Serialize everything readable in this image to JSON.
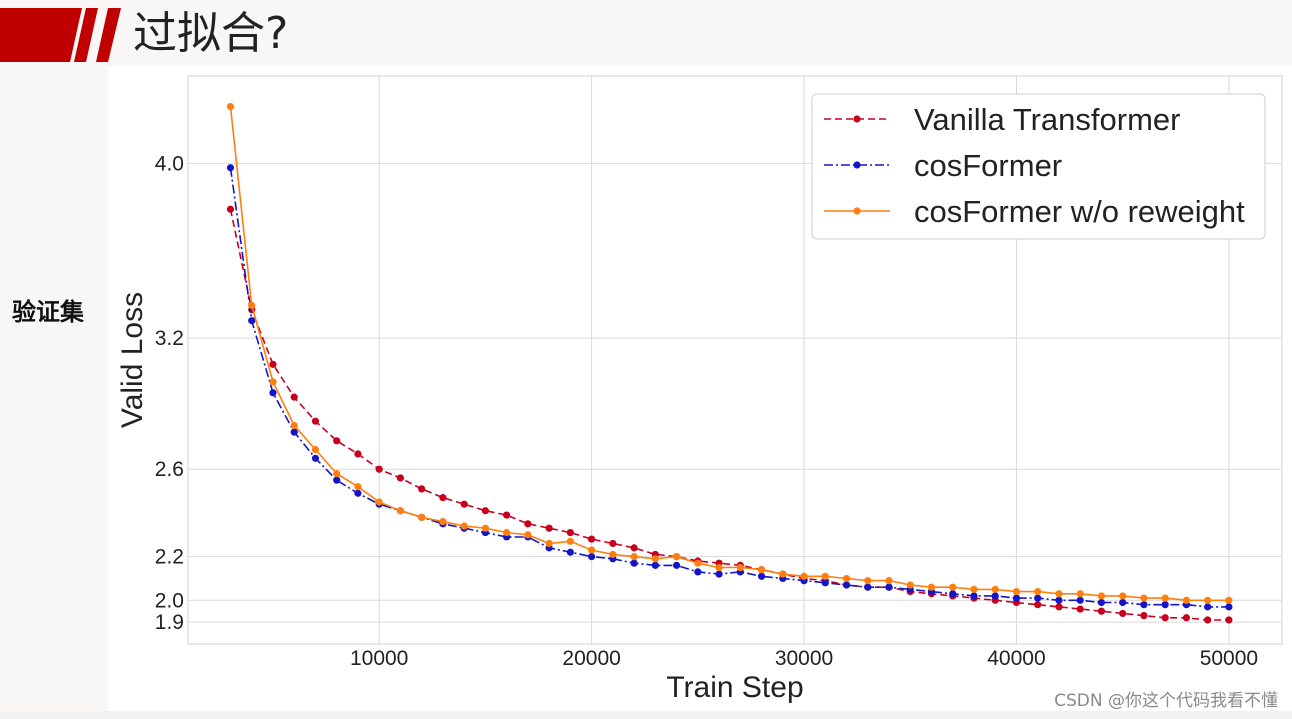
{
  "slide": {
    "title": "过拟合?",
    "side_label": "验证集",
    "watermark": "CSDN @你这个代码我看不懂",
    "accent_color": "#c00000"
  },
  "chart_data": {
    "type": "line",
    "title": "",
    "xlabel": "Train Step",
    "ylabel": "Valid Loss",
    "xlim": [
      1000,
      52500
    ],
    "ylim": [
      1.8,
      4.4
    ],
    "x_ticks": [
      10000,
      20000,
      30000,
      40000,
      50000
    ],
    "x_tick_labels": [
      "10000",
      "20000",
      "30000",
      "40000",
      "50000"
    ],
    "y_ticks": [
      1.9,
      2.0,
      2.2,
      2.6,
      3.2,
      4.0
    ],
    "y_tick_labels": [
      "1.9",
      "2.0",
      "2.2",
      "2.6",
      "3.2",
      "4.0"
    ],
    "grid": true,
    "legend_position": "top-right",
    "x": [
      3000,
      4000,
      5000,
      6000,
      7000,
      8000,
      9000,
      10000,
      11000,
      12000,
      13000,
      14000,
      15000,
      16000,
      17000,
      18000,
      19000,
      20000,
      21000,
      22000,
      23000,
      24000,
      25000,
      26000,
      27000,
      28000,
      29000,
      30000,
      31000,
      32000,
      33000,
      34000,
      35000,
      36000,
      37000,
      38000,
      39000,
      40000,
      41000,
      42000,
      43000,
      44000,
      45000,
      46000,
      47000,
      48000,
      49000,
      50000
    ],
    "series": [
      {
        "name": "Vanilla Transformer",
        "color": "#c8001e",
        "line_style": "dashed",
        "values": [
          3.79,
          3.33,
          3.08,
          2.93,
          2.82,
          2.73,
          2.67,
          2.6,
          2.56,
          2.51,
          2.47,
          2.44,
          2.41,
          2.39,
          2.35,
          2.33,
          2.31,
          2.28,
          2.26,
          2.24,
          2.21,
          2.2,
          2.18,
          2.17,
          2.16,
          2.14,
          2.12,
          2.1,
          2.09,
          2.07,
          2.06,
          2.06,
          2.04,
          2.03,
          2.02,
          2.01,
          2.0,
          1.99,
          1.98,
          1.97,
          1.96,
          1.95,
          1.94,
          1.93,
          1.92,
          1.92,
          1.91,
          1.91
        ]
      },
      {
        "name": "cosFormer",
        "color": "#1414c8",
        "line_style": "dashdot",
        "values": [
          3.98,
          3.28,
          2.95,
          2.77,
          2.65,
          2.55,
          2.49,
          2.44,
          2.41,
          2.38,
          2.35,
          2.33,
          2.31,
          2.29,
          2.29,
          2.24,
          2.22,
          2.2,
          2.19,
          2.17,
          2.16,
          2.16,
          2.13,
          2.12,
          2.13,
          2.11,
          2.1,
          2.09,
          2.08,
          2.07,
          2.06,
          2.06,
          2.05,
          2.04,
          2.03,
          2.02,
          2.02,
          2.01,
          2.01,
          2.0,
          2.0,
          1.99,
          1.99,
          1.98,
          1.98,
          1.98,
          1.97,
          1.97
        ]
      },
      {
        "name": "cosFormer w/o reweight",
        "color": "#ff7f0e",
        "line_style": "solid",
        "values": [
          4.26,
          3.35,
          3.0,
          2.8,
          2.69,
          2.58,
          2.52,
          2.45,
          2.41,
          2.38,
          2.36,
          2.34,
          2.33,
          2.31,
          2.3,
          2.26,
          2.27,
          2.23,
          2.21,
          2.2,
          2.19,
          2.2,
          2.17,
          2.15,
          2.15,
          2.14,
          2.12,
          2.11,
          2.11,
          2.1,
          2.09,
          2.09,
          2.07,
          2.06,
          2.06,
          2.05,
          2.05,
          2.04,
          2.04,
          2.03,
          2.03,
          2.02,
          2.02,
          2.01,
          2.01,
          2.0,
          2.0,
          2.0
        ]
      }
    ]
  }
}
